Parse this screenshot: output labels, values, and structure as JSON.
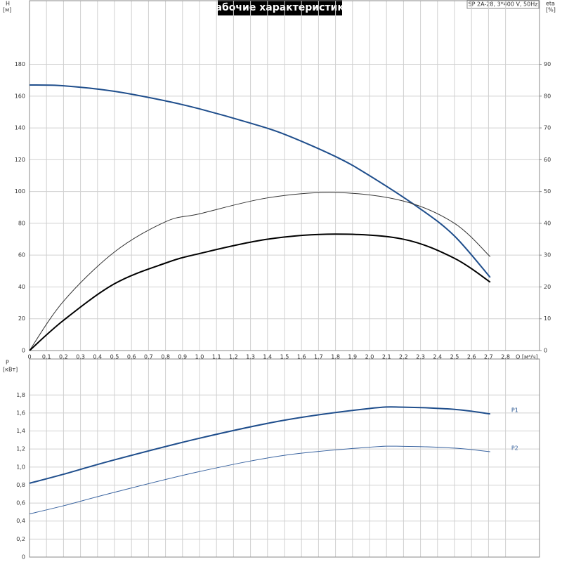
{
  "chart_data": [
    {
      "type": "line",
      "title": "Рабочие характеристики",
      "subtitle": "SP 2A-28, 3*400 V, 50Hz",
      "ylabel": "H",
      "yunit": "[м]",
      "y2label": "eta",
      "y2unit": "[%]",
      "xlabel": "Q [м³/ч]",
      "xlim": [
        0,
        3.0
      ],
      "ylim": [
        0,
        220
      ],
      "y2lim": [
        0,
        110
      ],
      "grid": true,
      "xticks": [
        0,
        {
          "value": 0.1,
          "label": "0,1"
        },
        {
          "value": 0.2,
          "label": "0,2"
        },
        {
          "value": 0.3,
          "label": "0,3"
        },
        {
          "value": 0.4,
          "label": "0,4"
        },
        {
          "value": 0.5,
          "label": "0,5"
        },
        {
          "value": 0.6,
          "label": "0,6"
        },
        {
          "value": 0.7,
          "label": "0,7"
        },
        {
          "value": 0.8,
          "label": "0,8"
        },
        {
          "value": 0.9,
          "label": "0,9"
        },
        {
          "value": 1.0,
          "label": "1,0"
        },
        {
          "value": 1.1,
          "label": "1,1"
        },
        {
          "value": 1.2,
          "label": "1,2"
        },
        {
          "value": 1.3,
          "label": "1,3"
        },
        {
          "value": 1.4,
          "label": "1,4"
        },
        {
          "value": 1.5,
          "label": "1,5"
        },
        {
          "value": 1.6,
          "label": "1,6"
        },
        {
          "value": 1.7,
          "label": "1,7"
        },
        {
          "value": 1.8,
          "label": "1,8"
        },
        {
          "value": 1.9,
          "label": "1,9"
        },
        {
          "value": 2.0,
          "label": "2,0"
        },
        {
          "value": 2.1,
          "label": "2,1"
        },
        {
          "value": 2.2,
          "label": "2,2"
        },
        {
          "value": 2.3,
          "label": "2,3"
        },
        {
          "value": 2.4,
          "label": "2,4"
        },
        {
          "value": 2.5,
          "label": "2,5"
        },
        {
          "value": 2.6,
          "label": "2,6"
        },
        {
          "value": 2.7,
          "label": "2,7"
        },
        {
          "value": 2.8,
          "label": "2,8"
        }
      ],
      "yticks": [
        0,
        20,
        40,
        60,
        80,
        100,
        120,
        140,
        160,
        180
      ],
      "y2ticks": [
        0,
        10,
        20,
        30,
        40,
        50,
        60,
        70,
        80,
        90
      ],
      "series": [
        {
          "color": "#1f4e8c",
          "width": 2,
          "x": [
            0,
            0.2,
            0.5,
            0.8,
            1.0,
            1.3,
            1.5,
            1.8,
            2.0,
            2.3,
            2.5,
            2.71
          ],
          "values": [
            167,
            166.5,
            163,
            157,
            152,
            143,
            136,
            122,
            110,
            89,
            72,
            46
          ]
        },
        {
          "color": "#333333",
          "width": 1,
          "axis": "y2",
          "x": [
            0,
            0.2,
            0.5,
            0.8,
            1.0,
            1.4,
            1.8,
            2.2,
            2.5,
            2.71
          ],
          "values": [
            0,
            15.5,
            31,
            40.5,
            43,
            48,
            49.7,
            47,
            40,
            29.5
          ]
        },
        {
          "color": "#000000",
          "width": 2,
          "axis": "y2",
          "x": [
            0,
            0.2,
            0.5,
            0.8,
            1.0,
            1.4,
            1.8,
            2.2,
            2.5,
            2.71
          ],
          "values": [
            0,
            9.5,
            21,
            27.5,
            30.5,
            35,
            36.6,
            35,
            29,
            21.5
          ]
        }
      ]
    },
    {
      "type": "line",
      "ylabel": "P",
      "yunit": "[кВт]",
      "xlim": [
        0,
        3.0
      ],
      "ylim": [
        0,
        2.2
      ],
      "grid": true,
      "yticks": [
        0,
        {
          "value": 0.2,
          "label": "0,2"
        },
        {
          "value": 0.4,
          "label": "0,4"
        },
        {
          "value": 0.6,
          "label": "0,6"
        },
        {
          "value": 0.8,
          "label": "0,8"
        },
        {
          "value": 1.0,
          "label": "1,0"
        },
        {
          "value": 1.2,
          "label": "1,2"
        },
        {
          "value": 1.4,
          "label": "1,4"
        },
        {
          "value": 1.6,
          "label": "1,6"
        },
        {
          "value": 1.8,
          "label": "1,8"
        }
      ],
      "series": [
        {
          "name": "P1",
          "color": "#1f4e8c",
          "width": 2,
          "x": [
            0,
            0.2,
            0.5,
            1.0,
            1.5,
            2.0,
            2.2,
            2.5,
            2.71
          ],
          "values": [
            0.82,
            0.92,
            1.08,
            1.32,
            1.52,
            1.65,
            1.665,
            1.64,
            1.59
          ]
        },
        {
          "name": "P2",
          "color": "#3a64a0",
          "width": 1,
          "x": [
            0,
            0.2,
            0.5,
            1.0,
            1.5,
            2.0,
            2.2,
            2.5,
            2.71
          ],
          "values": [
            0.48,
            0.57,
            0.72,
            0.95,
            1.13,
            1.22,
            1.23,
            1.21,
            1.17
          ]
        }
      ]
    }
  ]
}
